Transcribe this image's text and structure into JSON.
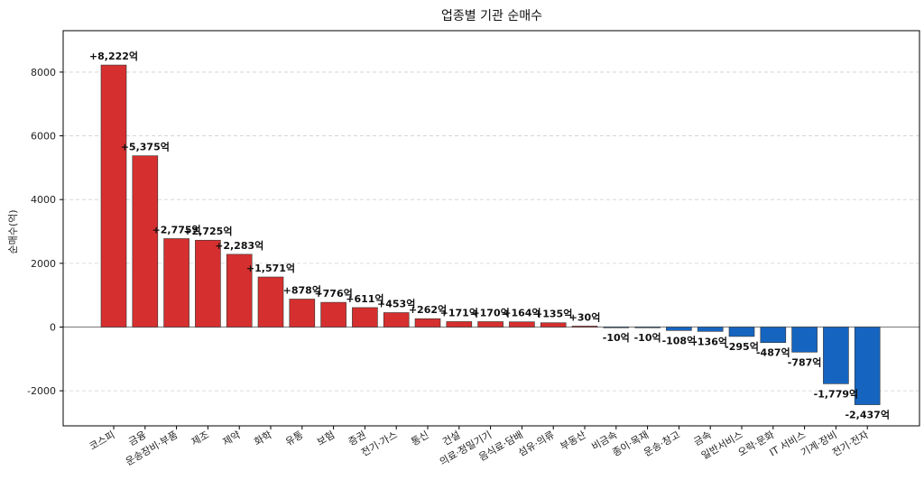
{
  "chart_data": {
    "type": "bar",
    "title": "업종별 기관 순매수",
    "xlabel": "",
    "ylabel": "순매수(억)",
    "ylim": [
      -3100,
      9300
    ],
    "yticks": [
      -2000,
      0,
      2000,
      4000,
      6000,
      8000
    ],
    "grid": true,
    "colors": {
      "positive": "#d62f2f",
      "negative": "#1565c0",
      "zero_line": "#888888"
    },
    "categories": [
      "코스피",
      "금융",
      "운송장비·부품",
      "제조",
      "제약",
      "화학",
      "유통",
      "보험",
      "증권",
      "전기·가스",
      "통신",
      "건설",
      "의료·정밀기기",
      "음식료·담배",
      "섬유·의류",
      "부동산",
      "비금속",
      "종이·목재",
      "운송·창고",
      "금속",
      "일반서비스",
      "오락·문화",
      "IT 서비스",
      "기계·장비",
      "전기·전자"
    ],
    "values": [
      8222,
      5375,
      2775,
      2725,
      2283,
      1571,
      878,
      776,
      611,
      453,
      262,
      171,
      170,
      164,
      135,
      30,
      -10,
      -10,
      -108,
      -136,
      -295,
      -487,
      -787,
      -1779,
      -2437
    ],
    "value_labels": [
      "+8,222억",
      "+5,375억",
      "+2,775억",
      "+2,725억",
      "+2,283억",
      "+1,571억",
      "+878억",
      "+776억",
      "+611억",
      "+453억",
      "+262억",
      "+171억",
      "+170억",
      "+164억",
      "+135억",
      "+30억",
      "-10억",
      "-10억",
      "-108억",
      "-136억",
      "-295억",
      "-487억",
      "-787억",
      "-1,779억",
      "-2,437억"
    ]
  }
}
